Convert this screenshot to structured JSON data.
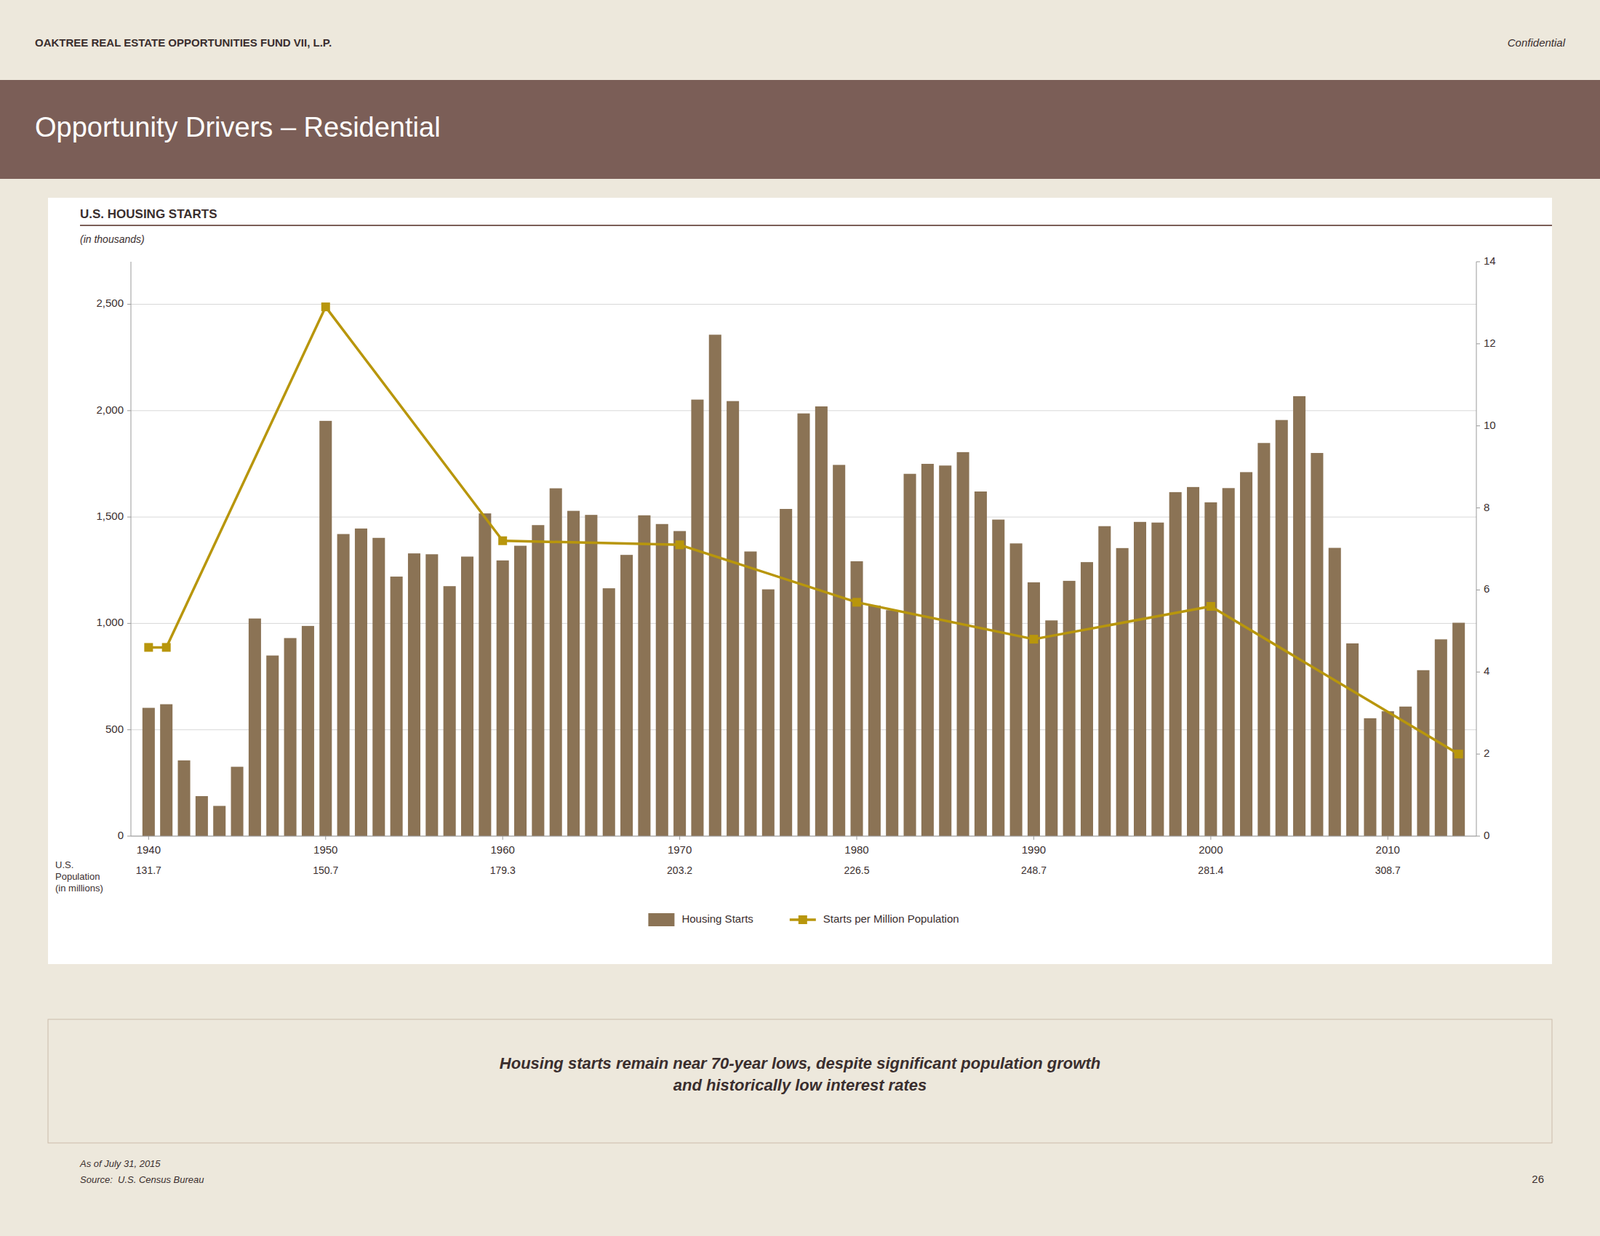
{
  "page": {
    "header": "OAKTREE REAL ESTATE OPPORTUNITIES FUND VII, L.P.",
    "confidential": "Confidential",
    "slide_title": "Opportunity Drivers – Residential",
    "callout": "Housing starts remain near 70-year lows, despite significant population growth\nand historically low interest rates",
    "footer": [
      "As of July 31, 2015",
      "Source:  U.S. Census Bureau"
    ],
    "page_number": "26"
  },
  "chart_data": {
    "type": "bar",
    "title": "U.S. HOUSING STARTS",
    "ylabel": "(in thousands)",
    "x": [
      1940,
      1941,
      1942,
      1943,
      1944,
      1945,
      1946,
      1947,
      1948,
      1949,
      1950,
      1951,
      1952,
      1953,
      1954,
      1955,
      1956,
      1957,
      1958,
      1959,
      1960,
      1961,
      1962,
      1963,
      1964,
      1965,
      1966,
      1967,
      1968,
      1969,
      1970,
      1971,
      1972,
      1973,
      1974,
      1975,
      1976,
      1977,
      1978,
      1979,
      1980,
      1981,
      1982,
      1983,
      1984,
      1985,
      1986,
      1987,
      1988,
      1989,
      1990,
      1991,
      1992,
      1993,
      1994,
      1995,
      1996,
      1997,
      1998,
      1999,
      2000,
      2001,
      2002,
      2003,
      2004,
      2005,
      2006,
      2007,
      2008,
      2009,
      2010,
      2011,
      2012,
      2013,
      2014
    ],
    "xlim": [
      1939,
      2015
    ],
    "xticks": [
      1940,
      1950,
      1960,
      1970,
      1980,
      1990,
      2000,
      2010
    ],
    "ylim": [
      0,
      2700
    ],
    "yticks": [
      0,
      500,
      {
        "value": 1000,
        "label": "1,000"
      },
      {
        "value": 1500,
        "label": "1,500"
      },
      {
        "value": 2000,
        "label": "2,000"
      },
      {
        "value": 2500,
        "label": "2,500"
      }
    ],
    "y2lim": [
      0,
      14
    ],
    "y2ticks": [
      0,
      2,
      4,
      6,
      8,
      10,
      12,
      14
    ],
    "grid": true,
    "legend": "bottom",
    "series": [
      {
        "name": "Housing Starts",
        "type": "bar",
        "color": "#8B7355",
        "values": [
          603,
          620,
          356,
          188,
          142,
          326,
          1023,
          849,
          931,
          988,
          1952,
          1420,
          1446,
          1402,
          1220,
          1329,
          1325,
          1175,
          1314,
          1517,
          1296,
          1365,
          1462,
          1635,
          1529,
          1510,
          1165,
          1322,
          1508,
          1467,
          1434,
          2052,
          2357,
          2045,
          1338,
          1160,
          1538,
          1987,
          2020,
          1745,
          1292,
          1084,
          1062,
          1703,
          1750,
          1742,
          1805,
          1620,
          1488,
          1376,
          1193,
          1014,
          1200,
          1288,
          1457,
          1354,
          1477,
          1474,
          1617,
          1641,
          1569,
          1636,
          1711,
          1848,
          1956,
          2068,
          1801,
          1355,
          906,
          554,
          587,
          609,
          780,
          925,
          1003
        ]
      },
      {
        "name": "Starts per Million Population",
        "type": "line",
        "axis": "y2",
        "color": "#B8960C",
        "marker": "square",
        "x": [
          1940,
          1941,
          1950,
          1960,
          1970,
          1980,
          1990,
          2000,
          2014
        ],
        "values": [
          4.6,
          4.6,
          12.9,
          7.2,
          7.1,
          5.7,
          4.8,
          5.6,
          2.0
        ]
      }
    ],
    "annotations": [
      {
        "text": "U.S.\nPopulation\n(in millions)"
      },
      {
        "x": 1940,
        "text": "131.7"
      },
      {
        "x": 1950,
        "text": "150.7"
      },
      {
        "x": 1960,
        "text": "179.3"
      },
      {
        "x": 1970,
        "text": "203.2"
      },
      {
        "x": 1980,
        "text": "226.5"
      },
      {
        "x": 1990,
        "text": "248.7"
      },
      {
        "x": 2000,
        "text": "281.4"
      },
      {
        "x": 2010,
        "text": "308.7"
      }
    ]
  }
}
